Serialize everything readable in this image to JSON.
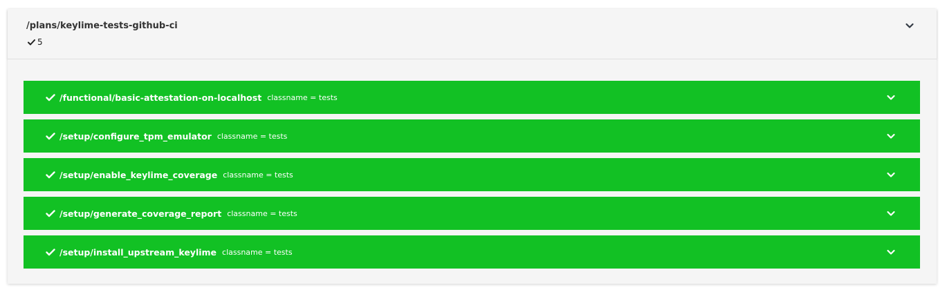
{
  "plan": {
    "title": "/plans/keylime-tests-github-ci",
    "passed_count": "5",
    "pass_icon": "check-icon",
    "expand_icon": "chevron-down-icon"
  },
  "colors": {
    "pass_green": "#12c124",
    "card_bg": "#f5f5f5",
    "title_text": "#333333"
  },
  "tests": [
    {
      "name": "/functional/basic-attestation-on-localhost",
      "meta": "classname = tests"
    },
    {
      "name": "/setup/configure_tpm_emulator",
      "meta": "classname = tests"
    },
    {
      "name": "/setup/enable_keylime_coverage",
      "meta": "classname = tests"
    },
    {
      "name": "/setup/generate_coverage_report",
      "meta": "classname = tests"
    },
    {
      "name": "/setup/install_upstream_keylime",
      "meta": "classname = tests"
    }
  ]
}
